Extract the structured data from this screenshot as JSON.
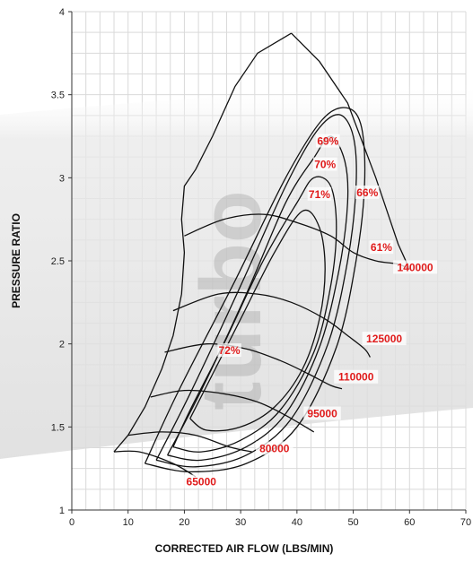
{
  "chart_data": {
    "type": "line",
    "title": "",
    "xlabel": "CORRECTED AIR FLOW (LBS/MIN)",
    "ylabel": "PRESSURE RATIO",
    "xlim": [
      0,
      70
    ],
    "ylim": [
      1,
      4
    ],
    "x_ticks": [
      "0",
      "10",
      "20",
      "30",
      "40",
      "50",
      "60",
      "70"
    ],
    "y_ticks": [
      "1",
      "1.5",
      "2",
      "2.5",
      "3",
      "3.5",
      "4"
    ],
    "grid": true,
    "watermark": "turbo",
    "surge_line": [
      [
        7.5,
        1.35
      ],
      [
        10,
        1.45
      ],
      [
        13,
        1.62
      ],
      [
        16,
        1.85
      ],
      [
        18,
        2.05
      ],
      [
        19.5,
        2.3
      ],
      [
        20,
        2.55
      ],
      [
        19.5,
        2.75
      ],
      [
        20,
        2.95
      ],
      [
        22,
        3.05
      ],
      [
        25,
        3.25
      ],
      [
        29,
        3.55
      ],
      [
        33,
        3.75
      ],
      [
        39,
        3.87
      ]
    ],
    "choke_line": [
      [
        39,
        3.87
      ],
      [
        44,
        3.7
      ],
      [
        49,
        3.45
      ],
      [
        54,
        3.0
      ],
      [
        58,
        2.6
      ],
      [
        60,
        2.45
      ]
    ],
    "speed_lines": [
      {
        "name": "65000",
        "points": [
          [
            7.5,
            1.35
          ],
          [
            12,
            1.35
          ],
          [
            18,
            1.28
          ],
          [
            22,
            1.2
          ]
        ]
      },
      {
        "name": "80000",
        "points": [
          [
            10,
            1.45
          ],
          [
            16,
            1.47
          ],
          [
            22,
            1.45
          ],
          [
            28,
            1.38
          ],
          [
            32,
            1.35
          ]
        ]
      },
      {
        "name": "95000",
        "points": [
          [
            14,
            1.68
          ],
          [
            20,
            1.72
          ],
          [
            27,
            1.7
          ],
          [
            33,
            1.65
          ],
          [
            38,
            1.57
          ],
          [
            43,
            1.47
          ]
        ]
      },
      {
        "name": "110000",
        "points": [
          [
            16.5,
            1.95
          ],
          [
            24,
            2.0
          ],
          [
            31,
            1.97
          ],
          [
            37,
            1.9
          ],
          [
            42,
            1.82
          ],
          [
            46,
            1.75
          ],
          [
            48,
            1.73
          ]
        ]
      },
      {
        "name": "125000",
        "points": [
          [
            18,
            2.2
          ],
          [
            26,
            2.3
          ],
          [
            33,
            2.3
          ],
          [
            39,
            2.25
          ],
          [
            45,
            2.15
          ],
          [
            49,
            2.05
          ],
          [
            52,
            1.97
          ],
          [
            53,
            1.92
          ]
        ]
      },
      {
        "name": "140000",
        "points": [
          [
            20,
            2.65
          ],
          [
            27,
            2.75
          ],
          [
            34,
            2.78
          ],
          [
            40,
            2.73
          ],
          [
            46,
            2.65
          ],
          [
            50,
            2.55
          ],
          [
            54,
            2.5
          ],
          [
            58,
            2.48
          ],
          [
            60,
            2.45
          ]
        ]
      }
    ],
    "speed_labels": [
      {
        "text": "65000",
        "x": 23,
        "y": 1.17
      },
      {
        "text": "80000",
        "x": 36,
        "y": 1.37
      },
      {
        "text": "95000",
        "x": 44.5,
        "y": 1.58
      },
      {
        "text": "110000",
        "x": 50.5,
        "y": 1.8
      },
      {
        "text": "125000",
        "x": 55.5,
        "y": 2.03
      },
      {
        "text": "140000",
        "x": 61,
        "y": 2.46
      }
    ],
    "efficiency_islands": [
      {
        "name": "72%",
        "points": [
          [
            21,
            1.55
          ],
          [
            24,
            1.48
          ],
          [
            30,
            1.5
          ],
          [
            36,
            1.62
          ],
          [
            41,
            1.85
          ],
          [
            44,
            2.15
          ],
          [
            45,
            2.45
          ],
          [
            44,
            2.7
          ],
          [
            41,
            2.8
          ],
          [
            36,
            2.55
          ],
          [
            30,
            2.15
          ],
          [
            24,
            1.75
          ],
          [
            21,
            1.55
          ]
        ]
      },
      {
        "name": "71%",
        "points": [
          [
            18,
            1.38
          ],
          [
            23,
            1.35
          ],
          [
            30,
            1.42
          ],
          [
            37,
            1.6
          ],
          [
            43,
            1.95
          ],
          [
            46,
            2.35
          ],
          [
            47,
            2.7
          ],
          [
            46,
            2.95
          ],
          [
            43,
            3.0
          ],
          [
            40,
            2.85
          ],
          [
            34,
            2.5
          ],
          [
            27,
            2.0
          ],
          [
            21,
            1.6
          ],
          [
            18,
            1.38
          ]
        ]
      },
      {
        "name": "70%",
        "points": [
          [
            17,
            1.33
          ],
          [
            23,
            1.3
          ],
          [
            31,
            1.38
          ],
          [
            38,
            1.58
          ],
          [
            44,
            1.98
          ],
          [
            47.5,
            2.45
          ],
          [
            49,
            2.85
          ],
          [
            48.5,
            3.1
          ],
          [
            46,
            3.25
          ],
          [
            43,
            3.12
          ],
          [
            38,
            2.85
          ],
          [
            31,
            2.3
          ],
          [
            23,
            1.72
          ],
          [
            17,
            1.33
          ]
        ]
      },
      {
        "name": "69%",
        "points": [
          [
            15,
            1.3
          ],
          [
            22,
            1.26
          ],
          [
            31,
            1.33
          ],
          [
            39,
            1.55
          ],
          [
            45.5,
            2.0
          ],
          [
            49,
            2.5
          ],
          [
            50.5,
            2.95
          ],
          [
            50,
            3.25
          ],
          [
            47.5,
            3.38
          ],
          [
            43.5,
            3.28
          ],
          [
            38,
            2.95
          ],
          [
            30,
            2.35
          ],
          [
            21,
            1.7
          ],
          [
            15,
            1.3
          ]
        ]
      },
      {
        "name": "66%",
        "points": [
          [
            13,
            1.28
          ],
          [
            21,
            1.23
          ],
          [
            31,
            1.28
          ],
          [
            40,
            1.5
          ],
          [
            47,
            1.98
          ],
          [
            50.5,
            2.5
          ],
          [
            52,
            2.95
          ],
          [
            51.5,
            3.3
          ],
          [
            49,
            3.42
          ],
          [
            44.5,
            3.35
          ],
          [
            38,
            3.0
          ],
          [
            29,
            2.38
          ],
          [
            19,
            1.72
          ],
          [
            13,
            1.28
          ]
        ]
      }
    ],
    "efficiency_labels": [
      {
        "text": "69%",
        "x": 45.5,
        "y": 3.22
      },
      {
        "text": "70%",
        "x": 45,
        "y": 3.08
      },
      {
        "text": "71%",
        "x": 44,
        "y": 2.9
      },
      {
        "text": "66%",
        "x": 52.5,
        "y": 2.91
      },
      {
        "text": "61%",
        "x": 55,
        "y": 2.58
      },
      {
        "text": "72%",
        "x": 28,
        "y": 1.96
      }
    ]
  }
}
